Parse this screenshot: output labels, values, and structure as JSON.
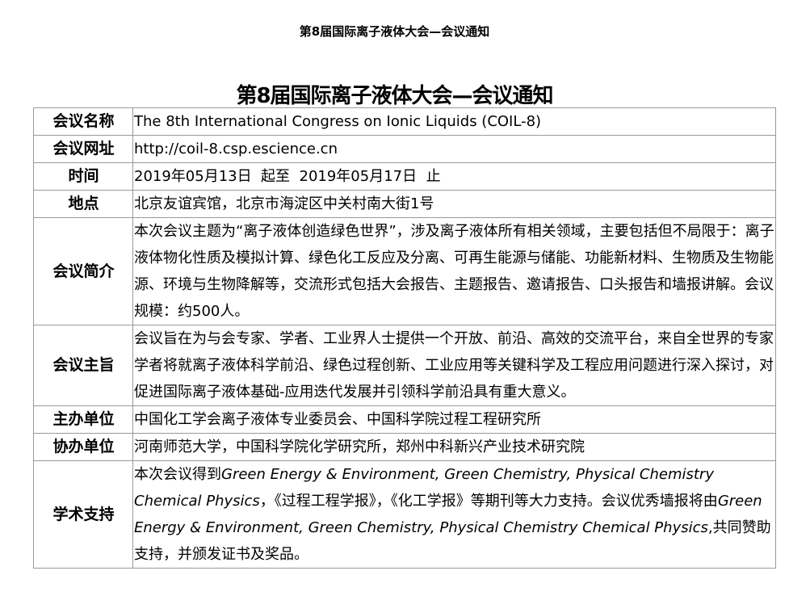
{
  "page_header": "第8届国际离子液体大会—会议通知",
  "title": "第8届国际离子液体大会—会议通知",
  "rows": [
    {
      "label": "会议名称",
      "value": "The 8th International Congress on Ionic Liquids (COIL-8)"
    },
    {
      "label": "会议网址",
      "value": "http://coil-8.csp.escience.cn"
    },
    {
      "label": "时间",
      "value": "2019年05月13日  起至  2019年05月17日  止"
    },
    {
      "label": "地点",
      "value": "北京友谊宾馆，北京市海淀区中关村南大街1号"
    },
    {
      "label": "会议简介",
      "value": "本次会议主题为“离子液体创造绿色世界”，涉及离子液体所有相关领域，主要包括但不局限于：离子液体物化性质及模拟计算、绿色化工反应及分离、可再生能源与储能、功能新材料、生物质及生物能源、环境与生物降解等，交流形式包括大会报告、主题报告、邀请报告、口头报告和墙报讲解。会议规模：约500人。"
    },
    {
      "label": "会议主旨",
      "value": "会议旨在为与会专家、学者、工业界人士提供一个开放、前沿、高效的交流平台，来自全世界的专家学者将就离子液体科学前沿、绿色过程创新、工业应用等关键科学及工程应用问题进行深入探讨，对促进国际离子液体基础-应用迭代发展并引领科学前沿具有重大意义。"
    },
    {
      "label": "主办单位",
      "value": "中国化工学会离子液体专业委员会、中国科学院过程工程研究所"
    },
    {
      "label": "协办单位",
      "value": "河南师范大学，中国科学院化学研究所，郑州中科新兴产业技术研究院"
    },
    {
      "label": "学术支持",
      "segments": [
        {
          "text": "本次会议得到",
          "italic": false
        },
        {
          "text": "Green Energy & Environment, Green Chemistry, Physical Chemistry Chemical Physics",
          "italic": true
        },
        {
          "text": "，《过程工程学报》，《化工学报》等期刊等大力支持。会议优秀墙报将由",
          "italic": false
        },
        {
          "text": "Green Energy & Environment, Green Chemistry, Physical Chemistry Chemical Physics",
          "italic": true
        },
        {
          "text": ",共同赞助支持，并颁发证书及奖品。",
          "italic": false
        }
      ]
    }
  ]
}
